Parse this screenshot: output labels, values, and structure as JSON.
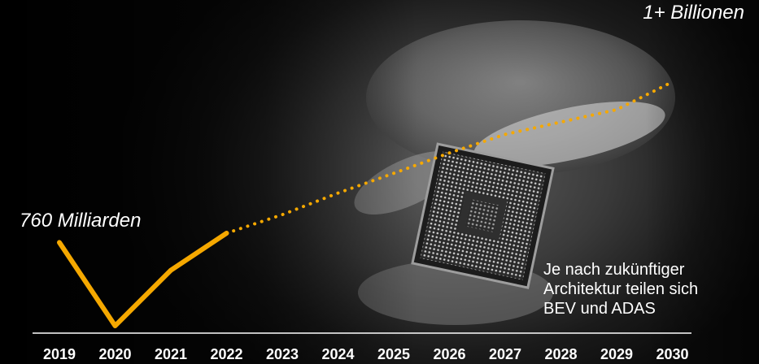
{
  "chart_data": {
    "type": "line",
    "title": "",
    "xlabel": "",
    "ylabel": "",
    "x": [
      2019,
      2020,
      2021,
      2022,
      2023,
      2024,
      2025,
      2026,
      2027,
      2028,
      2029,
      2030
    ],
    "ylim": [
      600,
      1100
    ],
    "series": [
      {
        "style": "solid",
        "x": [
          2019,
          2020,
          2021,
          2022
        ],
        "values": [
          760,
          625,
          715,
          775
        ]
      },
      {
        "style": "dotted",
        "x": [
          2022,
          2023,
          2024,
          2025,
          2026,
          2027,
          2028,
          2029,
          2030
        ],
        "values": [
          775,
          805,
          840,
          872,
          905,
          935,
          955,
          975,
          1020
        ]
      }
    ],
    "annotations": {
      "start": "760 Milliarden",
      "end": "1+ Billionen"
    },
    "note": [
      "Je nach zukünftiger",
      "Architektur teilen sich",
      "BEV und ADAS"
    ],
    "colors": {
      "line": "#F5A800",
      "text": "#FFFFFF",
      "axis": "#FFFFFF"
    },
    "grid": false
  },
  "background": {
    "image": "hand holding a processor chip"
  }
}
